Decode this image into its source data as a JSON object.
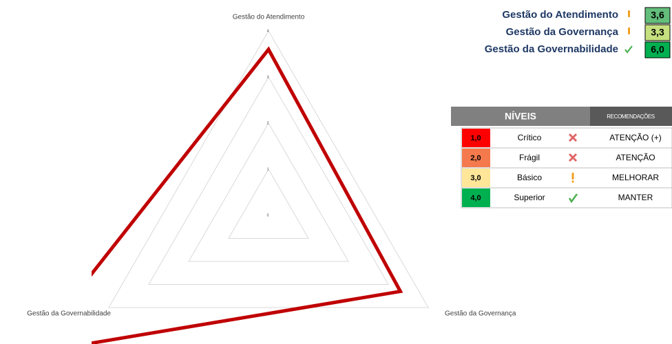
{
  "chart_data": {
    "type": "radar",
    "categories": [
      "Gestão do Atendimento",
      "Gestão da Governança",
      "Gestão da Governabilidade"
    ],
    "values": [
      3.6,
      3.3,
      6.0
    ],
    "value_labels": [
      "3,6",
      "3,3",
      "6,0"
    ],
    "color": "#c00000",
    "grid_color": "#d9d9d9",
    "rlim": [
      0,
      4
    ],
    "rticks": [
      0,
      1,
      2,
      3,
      4
    ]
  },
  "levels_table": {
    "header": [
      "NÍVEIS",
      "RECOMENDAÇÕES"
    ],
    "rows": [
      [
        "1,0",
        "Crítico",
        "ATENÇÃO (+)"
      ],
      [
        "2,0",
        "Frágil",
        "ATENÇÃO"
      ],
      [
        "3,0",
        "Básico",
        "MELHORAR"
      ],
      [
        "4,0",
        "Superior",
        "MANTER"
      ]
    ]
  }
}
